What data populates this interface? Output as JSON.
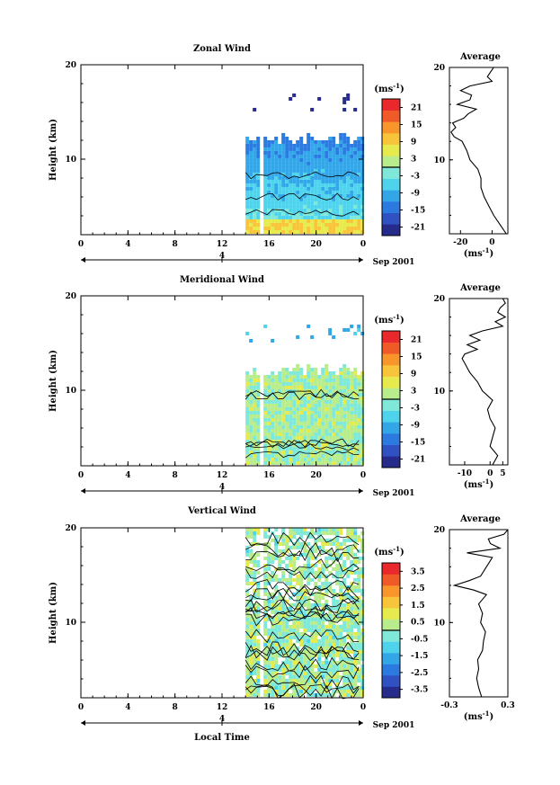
{
  "chart_data": [
    {
      "type": "heatmap",
      "title": "Zonal Wind",
      "ylabel": "Height (km)",
      "ylim": [
        2,
        20
      ],
      "x_ticks": [
        "0",
        "4",
        "8",
        "12",
        "16",
        "20",
        "0"
      ],
      "day_label": "4",
      "date_label": "Sep 2001",
      "observed_local_time": [
        14,
        24
      ],
      "gap_local_time": [
        15,
        15.5
      ],
      "upper_echo_km": [
        14.8,
        17
      ],
      "lower_echo_top_km": 12,
      "colorbar": {
        "unit": "(ms",
        "unit_sup": "-1",
        "unit_close": ")",
        "ticks": [
          "21",
          "15",
          "9",
          "3",
          "-3",
          "-9",
          "-15",
          "-21"
        ],
        "range": [
          -24,
          24
        ],
        "colors": [
          "#262a8a",
          "#2f51c2",
          "#2c79e0",
          "#33a6e8",
          "#4fd2ec",
          "#7fe8d8",
          "#b8ec8c",
          "#e6ea4c",
          "#f8c43a",
          "#f8962c",
          "#f05a28",
          "#e8282a"
        ],
        "zero_contour": true
      },
      "contour_levels": [
        0
      ],
      "average": {
        "title": "Average",
        "xlabel": "(ms",
        "xlabel_sup": "-1",
        "xlabel_close": ")",
        "x_ticks": [
          "-20",
          "0"
        ],
        "xlim": [
          -27,
          10
        ],
        "height_km": [
          2,
          3,
          4,
          5,
          6,
          7,
          8,
          9,
          10,
          11,
          12,
          12.5,
          13,
          13.5,
          14,
          14.5,
          15,
          15.5,
          16,
          16.5,
          17,
          17.5,
          18,
          18.5,
          19,
          19.5,
          20
        ],
        "value_ms": [
          9,
          5,
          1,
          -2,
          -5,
          -7,
          -7,
          -9,
          -14,
          -16,
          -19,
          -24,
          -26,
          -23,
          -25,
          -18,
          -15,
          -10,
          -22,
          -14,
          -13,
          -20,
          -14,
          0,
          -3,
          -1,
          1
        ]
      }
    },
    {
      "type": "heatmap",
      "title": "Meridional Wind",
      "ylabel": "Height (km)",
      "ylim": [
        2,
        20
      ],
      "x_ticks": [
        "0",
        "4",
        "8",
        "12",
        "16",
        "20",
        "0"
      ],
      "day_label": "4",
      "date_label": "Sep 2001",
      "observed_local_time": [
        14,
        24
      ],
      "gap_local_time": [
        15,
        15.5
      ],
      "upper_echo_km": [
        14.8,
        17
      ],
      "lower_echo_top_km": 12,
      "colorbar": {
        "unit": "(ms",
        "unit_sup": "-1",
        "unit_close": ")",
        "ticks": [
          "21",
          "15",
          "9",
          "3",
          "-3",
          "-9",
          "-15",
          "-21"
        ],
        "range": [
          -24,
          24
        ],
        "colors": [
          "#262a8a",
          "#2f51c2",
          "#2c79e0",
          "#33a6e8",
          "#4fd2ec",
          "#7fe8d8",
          "#b8ec8c",
          "#e6ea4c",
          "#f8c43a",
          "#f8962c",
          "#f05a28",
          "#e8282a"
        ],
        "zero_contour": true
      },
      "contour_levels": [
        0
      ],
      "average": {
        "title": "Average",
        "xlabel": "(ms",
        "xlabel_sup": "-1",
        "xlabel_close": ")",
        "x_ticks": [
          "-10",
          "0",
          "5"
        ],
        "xlim": [
          -16,
          7
        ],
        "height_km": [
          2,
          3,
          4,
          5,
          6,
          7,
          8,
          9,
          10,
          11,
          12,
          12.5,
          13,
          13.5,
          14,
          14.5,
          15,
          15.5,
          16,
          16.5,
          17,
          17.5,
          18,
          18.5,
          19,
          19.5,
          20
        ],
        "value_ms": [
          1,
          3,
          0,
          1,
          2,
          0,
          -1,
          1,
          -3,
          -5,
          -8,
          -9,
          -10,
          -11,
          -10,
          -5,
          -9,
          -4,
          -8,
          -3,
          5,
          2,
          6,
          3,
          4,
          6,
          5
        ]
      }
    },
    {
      "type": "heatmap",
      "title": "Vertical Wind",
      "ylabel": "Height (km)",
      "ylim": [
        2,
        20
      ],
      "x_ticks": [
        "0",
        "4",
        "8",
        "12",
        "16",
        "20",
        "0"
      ],
      "day_label": "4",
      "date_label": "Sep 2001",
      "xlabel": "Local Time",
      "observed_local_time": [
        14,
        24
      ],
      "gap_local_time": [
        15,
        15.5
      ],
      "echo_top_km": 20,
      "colorbar": {
        "unit": "(ms",
        "unit_sup": "-1",
        "unit_close": ")",
        "ticks": [
          "3.5",
          "2.5",
          "1.5",
          "0.5",
          "-0.5",
          "-1.5",
          "-2.5",
          "-3.5"
        ],
        "range": [
          -4,
          4
        ],
        "colors": [
          "#262a8a",
          "#2f51c2",
          "#2c79e0",
          "#33a6e8",
          "#4fd2ec",
          "#7fe8d8",
          "#b8ec8c",
          "#e6ea4c",
          "#f8c43a",
          "#f8962c",
          "#f05a28",
          "#e8282a"
        ],
        "zero_contour": true
      },
      "contour_levels": [
        0
      ],
      "average": {
        "title": "Average",
        "xlabel": "(ms",
        "xlabel_sup": "-1",
        "xlabel_close": ")",
        "x_ticks": [
          "-0.3",
          "0.3"
        ],
        "xlim": [
          -0.3,
          0.3
        ],
        "height_km": [
          2,
          3,
          4,
          5,
          6,
          7,
          8,
          9,
          10,
          11,
          12,
          13,
          13.5,
          14,
          14.5,
          15,
          16,
          17,
          17.5,
          18,
          18.5,
          19,
          19.5,
          20
        ],
        "value_ms": [
          0.03,
          0.0,
          -0.02,
          0.0,
          -0.01,
          0.04,
          0.05,
          0.07,
          0.02,
          0.04,
          0.0,
          0.08,
          -0.05,
          -0.25,
          -0.1,
          0.02,
          0.08,
          0.14,
          -0.12,
          0.22,
          0.12,
          0.1,
          0.26,
          0.3
        ]
      }
    }
  ]
}
